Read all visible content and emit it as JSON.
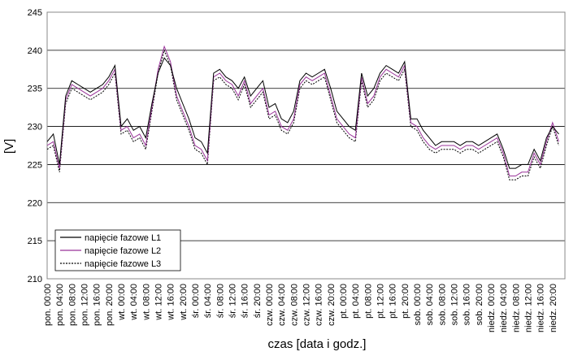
{
  "chart_data": {
    "type": "line",
    "x_label": "czas [data i godz.]",
    "y_label": "[V]",
    "categories": [
      "pon. 00:00",
      null,
      "pon. 04:00",
      null,
      "pon. 08:00",
      null,
      "pon. 12:00",
      null,
      "pon. 16:00",
      null,
      "pon. 20:00",
      null,
      "wt. 00:00",
      null,
      "wt. 04:00",
      null,
      "wt. 08:00",
      null,
      "wt. 12:00",
      null,
      "wt. 16:00",
      null,
      "wt. 20:00",
      null,
      "śr. 00:00",
      null,
      "śr. 04:00",
      null,
      "śr. 08:00",
      null,
      "śr. 12:00",
      null,
      "śr. 16:00",
      null,
      "śr. 20:00",
      null,
      "czw. 00:00",
      null,
      "czw. 04:00",
      null,
      "czw. 08:00",
      null,
      "czw. 12:00",
      null,
      "czw. 16:00",
      null,
      "czw. 20:00",
      null,
      "pt. 00:00",
      null,
      "pt. 04:00",
      null,
      "pt. 08:00",
      null,
      "pt. 12:00",
      null,
      "pt. 16:00",
      null,
      "pt. 20:00",
      null,
      "sob. 00:00",
      null,
      "sob. 04:00",
      null,
      "sob. 08:00",
      null,
      "sob. 12:00",
      null,
      "sob. 16:00",
      null,
      "sob. 20:00",
      null,
      "niedz. 00:00",
      null,
      "niedz. 04:00",
      null,
      "niedz. 08:00",
      null,
      "niedz. 12:00",
      null,
      "niedz. 16:00",
      null,
      "niedz. 20:00",
      null
    ],
    "series": [
      {
        "name": "napięcie fazowe L1",
        "color": "#000000",
        "dash": false,
        "values": [
          228,
          229,
          225,
          234,
          236,
          235.5,
          235,
          234.5,
          235,
          235.5,
          236.5,
          238,
          230,
          231,
          229.5,
          230,
          228.5,
          233,
          237,
          239,
          238,
          235,
          233,
          231,
          228.5,
          228,
          226.5,
          237,
          237.5,
          236.5,
          236,
          235,
          236.5,
          234,
          235,
          236,
          232.5,
          233,
          231,
          230.5,
          232,
          236,
          237,
          236.5,
          237,
          237.5,
          235,
          232,
          231,
          230,
          229.5,
          237,
          234,
          235,
          237,
          238,
          237.5,
          237,
          238.5,
          231,
          231,
          229.5,
          228.5,
          227.5,
          228,
          228,
          228,
          227.5,
          228,
          228,
          227.5,
          228,
          228.5,
          229,
          227,
          224.5,
          224.5,
          225,
          225,
          227,
          225.5,
          228.5,
          230,
          229
        ]
      },
      {
        "name": "napięcie fazowe L2",
        "color": "#993399",
        "dash": false,
        "values": [
          227.5,
          228,
          224.5,
          233.5,
          235.5,
          235,
          234.5,
          234,
          234.5,
          235,
          236,
          237.5,
          229.5,
          230,
          228.5,
          229,
          227.5,
          232.5,
          237.5,
          240.5,
          238.5,
          234,
          232,
          230,
          227.5,
          227,
          225.5,
          236.5,
          237,
          236,
          235.5,
          234,
          236,
          233,
          234,
          235,
          231.5,
          232,
          230,
          229.5,
          231,
          235.5,
          236.5,
          236,
          236.5,
          237,
          234,
          231,
          230,
          229,
          228.5,
          236.5,
          233,
          234,
          236.5,
          237.5,
          237,
          236.5,
          238,
          230.5,
          230,
          228.5,
          227.5,
          227,
          227.5,
          227.5,
          227.5,
          227,
          227.5,
          227.5,
          227,
          227.5,
          228,
          228.5,
          226.5,
          223.5,
          223.5,
          224,
          224,
          226.5,
          225,
          228,
          230.5,
          228
        ]
      },
      {
        "name": "napięcie fazowe L3",
        "color": "#000000",
        "dash": true,
        "values": [
          227,
          227.5,
          224,
          233,
          235,
          234.5,
          234,
          233.5,
          234,
          234.5,
          235.5,
          237,
          229,
          229.5,
          228,
          228.5,
          227,
          232,
          237,
          240,
          238,
          233.5,
          231.5,
          229.5,
          227,
          226.5,
          225,
          236,
          236.5,
          235.5,
          235,
          233.5,
          235.5,
          232.5,
          233.5,
          234.5,
          231,
          231.5,
          229.5,
          229,
          230.5,
          235,
          236,
          235.5,
          236,
          236.5,
          233.5,
          230.5,
          229.5,
          228.5,
          228,
          236,
          232.5,
          233.5,
          236,
          237,
          236.5,
          236,
          237.5,
          230,
          229.5,
          228,
          227,
          226.5,
          227,
          227,
          227,
          226.5,
          227,
          227,
          226.5,
          227,
          227.5,
          228,
          226,
          223,
          223,
          223.5,
          223.5,
          226,
          224.5,
          227.5,
          230,
          227.5
        ]
      }
    ],
    "ylim": [
      210,
      245
    ],
    "yticks": [
      210,
      215,
      220,
      225,
      230,
      235,
      240,
      245
    ],
    "grid": true,
    "legend": "lower left"
  }
}
